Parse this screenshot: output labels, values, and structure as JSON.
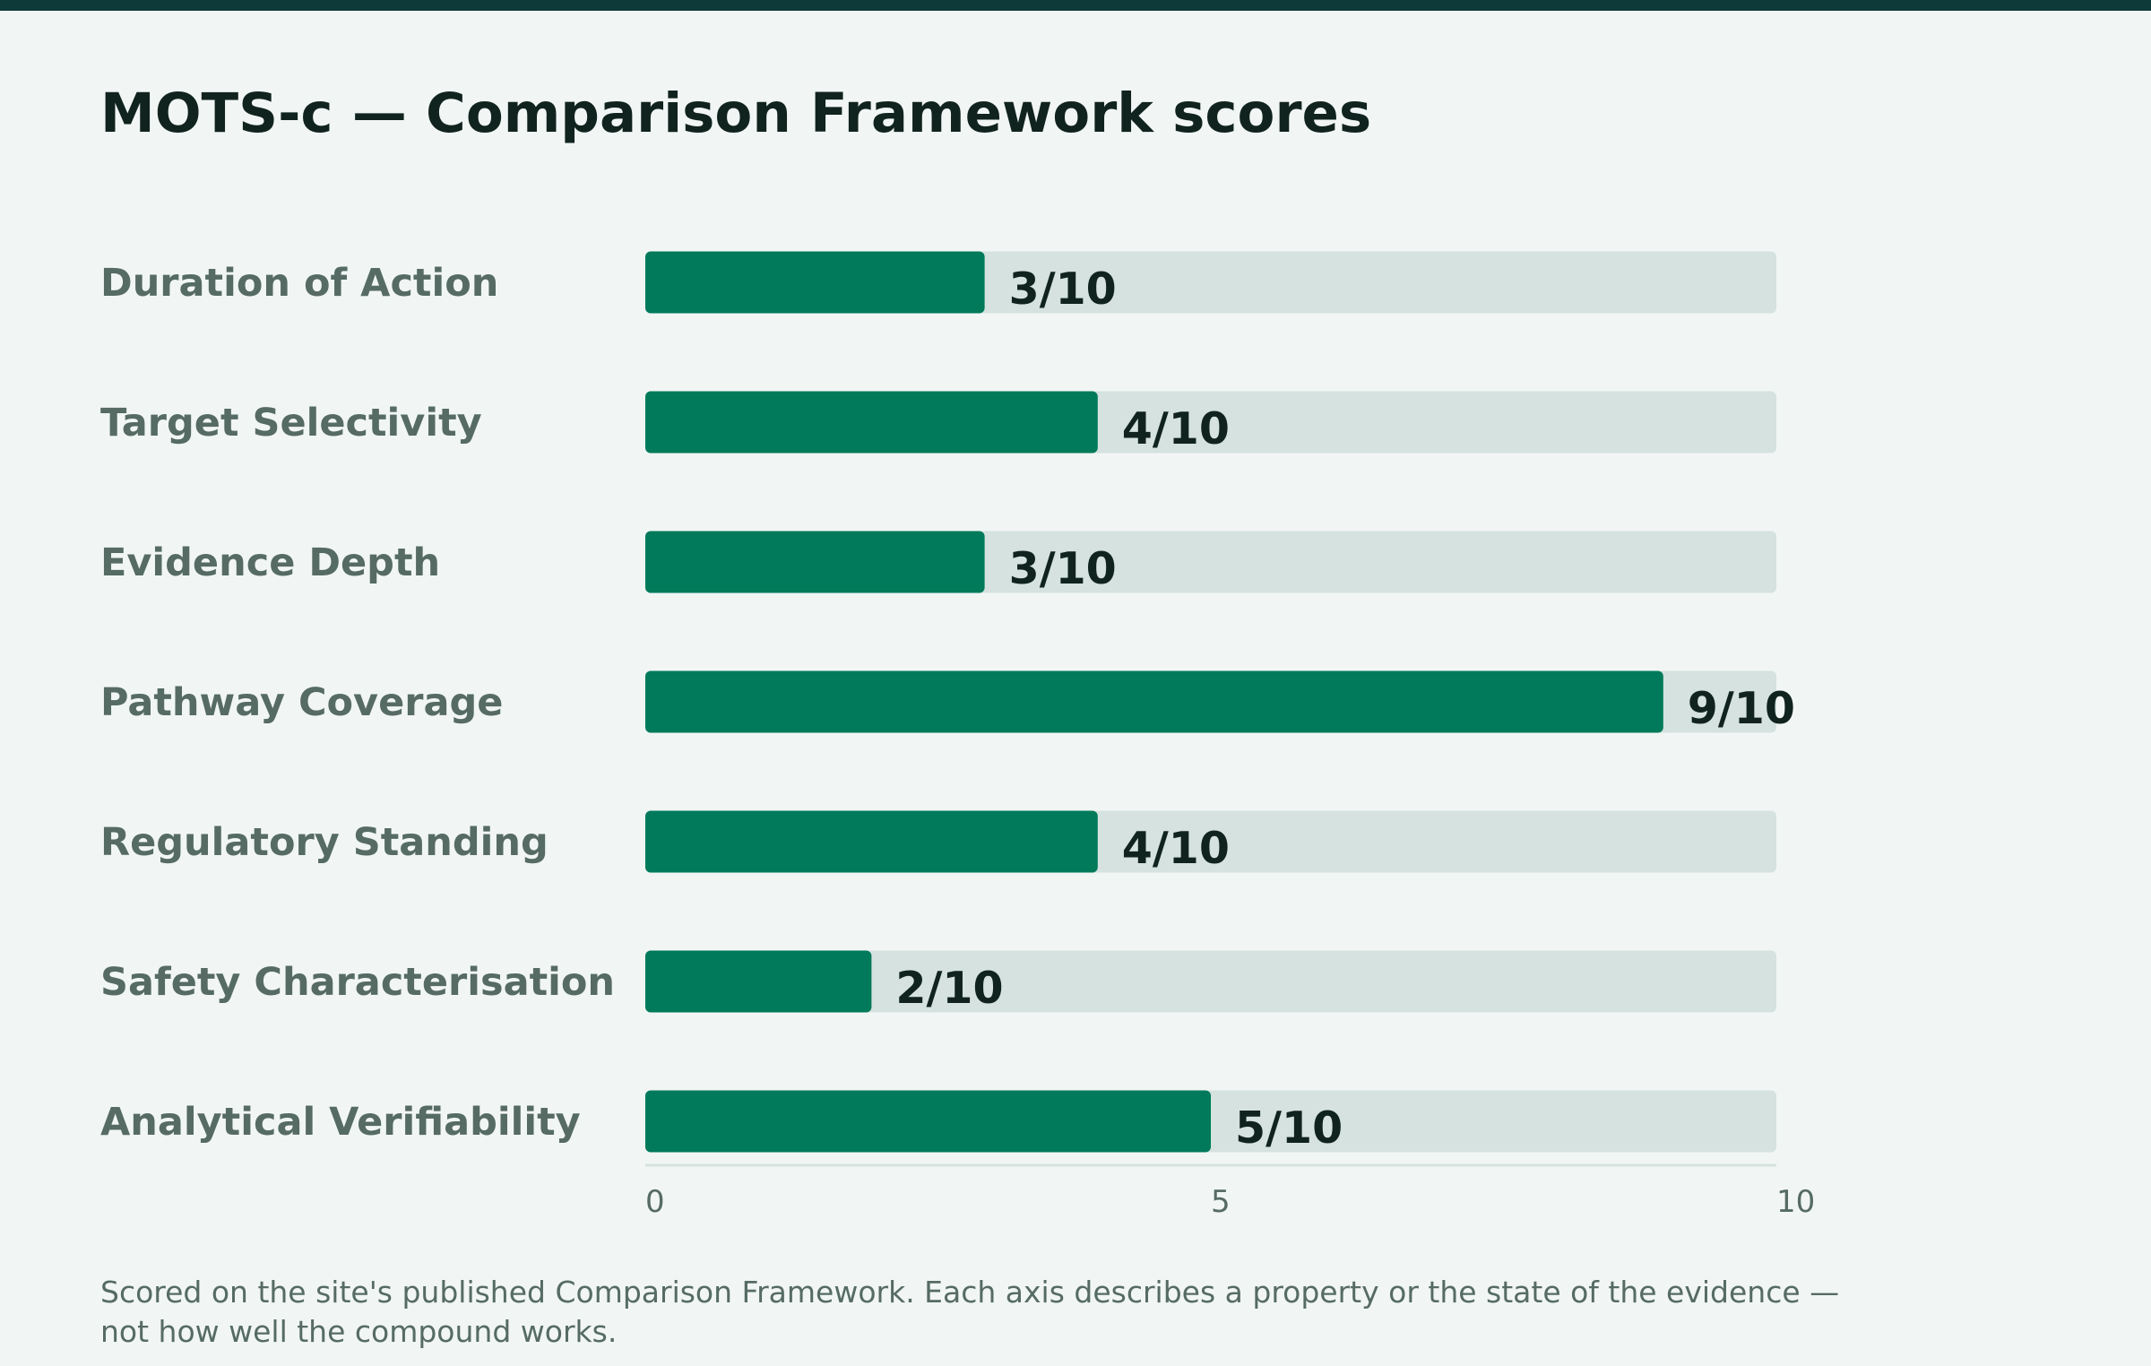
{
  "colors": {
    "top_bar": "#0e3b3a",
    "background": "#f1f6f4",
    "bar_fill": "#007a5a",
    "bar_track": "#d5e2df",
    "title_text": "#11231f",
    "label_text": "#566b64",
    "axis_line": "#d5e2df"
  },
  "chart_data": {
    "type": "bar",
    "orientation": "horizontal",
    "title": "MOTS-c — Comparison Framework scores",
    "categories": [
      "Duration of Action",
      "Target Selectivity",
      "Evidence Depth",
      "Pathway Coverage",
      "Regulatory Standing",
      "Safety Characterisation",
      "Analytical Verifiability"
    ],
    "values": [
      3,
      4,
      3,
      9,
      4,
      2,
      5
    ],
    "value_labels": [
      "3/10",
      "4/10",
      "3/10",
      "9/10",
      "4/10",
      "2/10",
      "5/10"
    ],
    "max": 10,
    "xlim": [
      0,
      10
    ],
    "x_ticks": [
      "0",
      "5",
      "10"
    ],
    "grid": false,
    "legend": "none"
  },
  "footnote": "Scored on the site's published Comparison Framework. Each axis describes a property or the state of the evidence — not how well the compound works."
}
